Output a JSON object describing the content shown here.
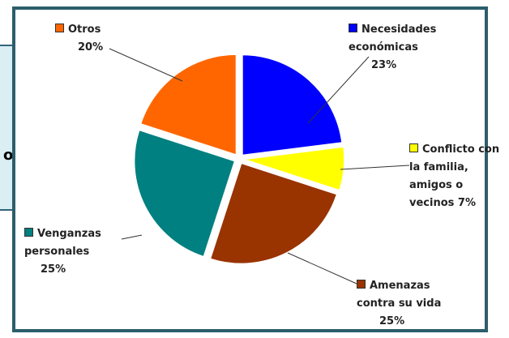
{
  "side_box_text": "o",
  "chart_data": {
    "type": "pie",
    "categories": [
      "Necesidades económicas",
      "Conflicto con la familia, amigos o vecinos",
      "Amenazas contra su vida",
      "Venganzas personales",
      "Otros"
    ],
    "values": [
      23,
      7,
      25,
      25,
      20
    ],
    "value_labels": [
      "23%",
      "7%",
      "25%",
      "25%",
      "20%"
    ],
    "colors": [
      "#0000ff",
      "#ffff00",
      "#993300",
      "#008080",
      "#ff6600"
    ]
  }
}
